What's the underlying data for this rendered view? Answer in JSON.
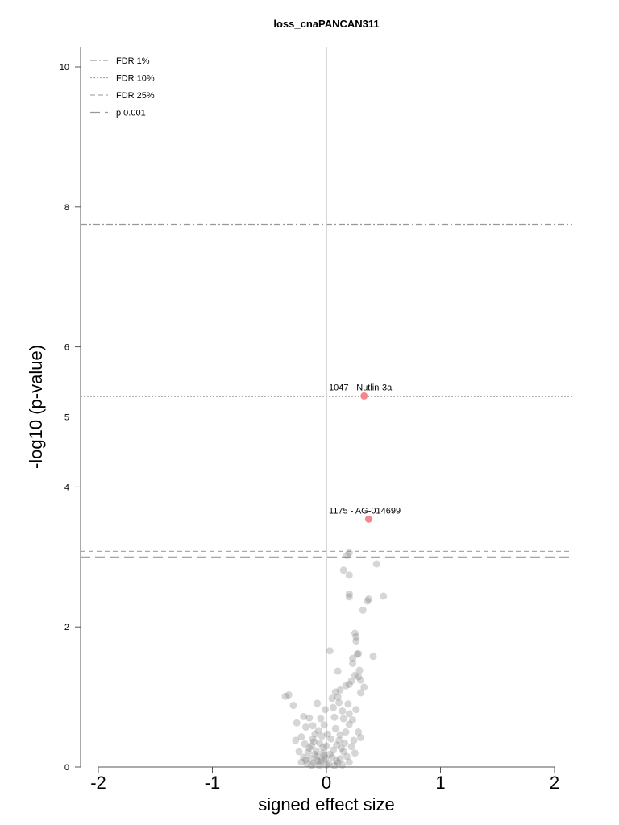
{
  "chart_data": {
    "type": "scatter",
    "title": "loss_cnaPANCAN311",
    "xlabel": "signed effect size",
    "ylabel": "-log10 (p-value)",
    "xlim": [
      -2.12,
      2.15
    ],
    "ylim": [
      0,
      10.3
    ],
    "x_ticks": [
      "-2",
      "-1",
      "0",
      "1",
      "2"
    ],
    "x_tick_values": [
      -2,
      -1,
      0,
      1,
      2
    ],
    "y_ticks": [
      "0",
      "2",
      "4",
      "5",
      "6",
      "8",
      "10"
    ],
    "y_tick_values": [
      0,
      2,
      4,
      5,
      6,
      8,
      10
    ],
    "vertical_line_x": 0,
    "threshold_lines": [
      {
        "label": "FDR 1%",
        "y": 7.75,
        "style": "dashdot",
        "color": "#999999"
      },
      {
        "label": "FDR 10%",
        "y": 5.29,
        "style": "dotted",
        "color": "#aaaaaa"
      },
      {
        "label": "FDR 25%",
        "y": 3.08,
        "style": "dashed-short",
        "color": "#aaaaaa"
      },
      {
        "label": "p 0.001",
        "y": 3.0,
        "style": "dashed-long",
        "color": "#999999"
      }
    ],
    "legend_position": "top-left",
    "highlighted_points": [
      {
        "x": 0.33,
        "y": 5.3,
        "label": "1047 - Nutlin-3a",
        "color": "#f4878e"
      },
      {
        "x": 0.37,
        "y": 3.54,
        "label": "1175 - AG-014699",
        "color": "#f4878e"
      }
    ],
    "background_points": [
      [
        0.2,
        3.06
      ],
      [
        0.18,
        3.02
      ],
      [
        0.44,
        2.9
      ],
      [
        0.15,
        2.81
      ],
      [
        0.2,
        2.74
      ],
      [
        0.5,
        2.44
      ],
      [
        0.2,
        2.47
      ],
      [
        0.2,
        2.43
      ],
      [
        0.37,
        2.4
      ],
      [
        0.36,
        2.37
      ],
      [
        0.32,
        2.24
      ],
      [
        0.25,
        1.91
      ],
      [
        0.26,
        1.86
      ],
      [
        0.26,
        1.8
      ],
      [
        0.28,
        1.62
      ],
      [
        0.27,
        1.61
      ],
      [
        0.41,
        1.58
      ],
      [
        0.03,
        1.66
      ],
      [
        0.23,
        1.55
      ],
      [
        0.23,
        1.48
      ],
      [
        0.29,
        1.38
      ],
      [
        0.28,
        1.29
      ],
      [
        0.3,
        1.24
      ],
      [
        0.1,
        1.37
      ],
      [
        0.25,
        1.31
      ],
      [
        0.22,
        1.23
      ],
      [
        0.17,
        1.16
      ],
      [
        0.12,
        1.1
      ],
      [
        0.08,
        1.07
      ],
      [
        0.1,
        1.0
      ],
      [
        0.33,
        1.14
      ],
      [
        0.3,
        1.06
      ],
      [
        0.05,
        0.98
      ],
      [
        -0.33,
        1.03
      ],
      [
        -0.36,
        1.01
      ],
      [
        -0.29,
        0.88
      ],
      [
        -0.08,
        0.91
      ],
      [
        0.11,
        0.92
      ],
      [
        0.19,
        0.9
      ],
      [
        0.26,
        0.82
      ],
      [
        0.2,
        0.76
      ],
      [
        0.15,
        0.69
      ],
      [
        0.07,
        0.71
      ],
      [
        -0.05,
        0.69
      ],
      [
        -0.15,
        0.7
      ],
      [
        -0.2,
        0.72
      ],
      [
        -0.26,
        0.63
      ],
      [
        -0.18,
        0.57
      ],
      [
        -0.12,
        0.59
      ],
      [
        -0.02,
        0.6
      ],
      [
        0.08,
        0.55
      ],
      [
        0.2,
        0.61
      ],
      [
        0.28,
        0.5
      ],
      [
        0.3,
        0.42
      ],
      [
        0.12,
        0.46
      ],
      [
        0.04,
        0.4
      ],
      [
        -0.04,
        0.44
      ],
      [
        -0.1,
        0.47
      ],
      [
        -0.22,
        0.43
      ],
      [
        -0.27,
        0.38
      ],
      [
        -0.19,
        0.33
      ],
      [
        -0.13,
        0.3
      ],
      [
        -0.06,
        0.34
      ],
      [
        0.0,
        0.3
      ],
      [
        0.09,
        0.31
      ],
      [
        0.16,
        0.34
      ],
      [
        0.22,
        0.29
      ],
      [
        0.25,
        0.2
      ],
      [
        0.15,
        0.22
      ],
      [
        0.06,
        0.24
      ],
      [
        -0.03,
        0.2
      ],
      [
        -0.09,
        0.23
      ],
      [
        -0.16,
        0.21
      ],
      [
        -0.24,
        0.22
      ],
      [
        -0.2,
        0.14
      ],
      [
        -0.14,
        0.12
      ],
      [
        -0.08,
        0.15
      ],
      [
        -0.01,
        0.12
      ],
      [
        0.05,
        0.14
      ],
      [
        0.12,
        0.12
      ],
      [
        0.18,
        0.15
      ],
      [
        0.2,
        0.07
      ],
      [
        0.1,
        0.06
      ],
      [
        0.02,
        0.05
      ],
      [
        -0.05,
        0.07
      ],
      [
        -0.11,
        0.06
      ],
      [
        -0.17,
        0.05
      ],
      [
        -0.22,
        0.07
      ],
      [
        -0.13,
        0.02
      ],
      [
        -0.06,
        0.02
      ],
      [
        0.0,
        0.03
      ],
      [
        0.07,
        0.02
      ],
      [
        0.14,
        0.03
      ],
      [
        -0.1,
        0.18
      ],
      [
        -0.04,
        0.1
      ],
      [
        0.03,
        0.18
      ],
      [
        -0.15,
        0.27
      ],
      [
        0.11,
        0.38
      ],
      [
        -0.07,
        0.52
      ],
      [
        0.17,
        0.5
      ],
      [
        -0.01,
        0.82
      ],
      [
        0.14,
        0.8
      ],
      [
        0.23,
        0.67
      ],
      [
        -0.11,
        0.36
      ],
      [
        0.06,
        0.85
      ],
      [
        0.2,
        1.18
      ],
      [
        -0.02,
        0.16
      ],
      [
        -0.08,
        0.09
      ],
      [
        0.09,
        0.09
      ],
      [
        -0.18,
        0.1
      ],
      [
        -0.12,
        0.4
      ],
      [
        0.01,
        0.47
      ],
      [
        0.13,
        0.27
      ],
      [
        -0.03,
        0.28
      ],
      [
        0.24,
        0.38
      ]
    ]
  }
}
